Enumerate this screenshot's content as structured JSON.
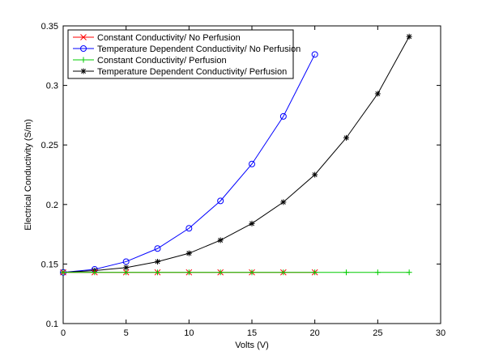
{
  "chart_data": {
    "type": "line",
    "title": "",
    "xlabel": "Volts (V)",
    "ylabel": "Electrical Conductivity (S/m)",
    "xlim": [
      0,
      30
    ],
    "ylim": [
      0.1,
      0.35
    ],
    "xticks": [
      0,
      5,
      10,
      15,
      20,
      25,
      30
    ],
    "yticks": [
      0.1,
      0.15,
      0.2,
      0.25,
      0.3,
      0.35
    ],
    "xtick_labels": [
      "0",
      "5",
      "10",
      "15",
      "20",
      "25",
      "30"
    ],
    "ytick_labels": [
      "0.1",
      "0.15",
      "0.2",
      "0.25",
      "0.3",
      "0.35"
    ],
    "grid": false,
    "legend_position": "top-left",
    "series": [
      {
        "name": "Constant Conductivity/ No Perfusion",
        "color": "#ff0000",
        "marker": "x",
        "x": [
          0,
          2.5,
          5,
          7.5,
          10,
          12.5,
          15,
          17.5,
          20
        ],
        "y": [
          0.143,
          0.143,
          0.143,
          0.143,
          0.143,
          0.143,
          0.143,
          0.143,
          0.143
        ]
      },
      {
        "name": "Temperature Dependent Conductivity/ No Perfusion",
        "color": "#0000ff",
        "marker": "circle",
        "x": [
          0,
          2.5,
          5,
          7.5,
          10,
          12.5,
          15,
          17.5,
          20
        ],
        "y": [
          0.143,
          0.1455,
          0.152,
          0.163,
          0.18,
          0.203,
          0.234,
          0.274,
          0.326
        ]
      },
      {
        "name": "Constant Conductivity/ Perfusion",
        "color": "#00cc00",
        "marker": "plus",
        "x": [
          0,
          2.5,
          5,
          7.5,
          10,
          12.5,
          15,
          17.5,
          20,
          22.5,
          25,
          27.5
        ],
        "y": [
          0.143,
          0.143,
          0.143,
          0.143,
          0.143,
          0.143,
          0.143,
          0.143,
          0.143,
          0.143,
          0.143,
          0.143
        ]
      },
      {
        "name": "Temperature Dependent Conductivity/ Perfusion",
        "color": "#000000",
        "marker": "star",
        "x": [
          0,
          2.5,
          5,
          7.5,
          10,
          12.5,
          15,
          17.5,
          20,
          22.5,
          25,
          27.5
        ],
        "y": [
          0.143,
          0.1445,
          0.147,
          0.152,
          0.159,
          0.17,
          0.184,
          0.202,
          0.225,
          0.256,
          0.293,
          0.341
        ]
      }
    ]
  }
}
